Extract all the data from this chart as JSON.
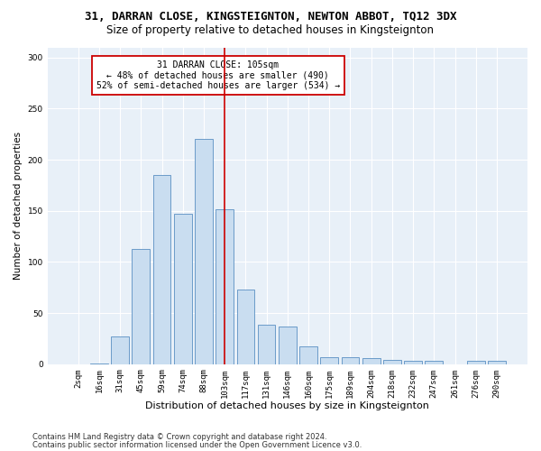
{
  "title": "31, DARRAN CLOSE, KINGSTEIGNTON, NEWTON ABBOT, TQ12 3DX",
  "subtitle": "Size of property relative to detached houses in Kingsteignton",
  "xlabel": "Distribution of detached houses by size in Kingsteignton",
  "ylabel": "Number of detached properties",
  "footnote1": "Contains HM Land Registry data © Crown copyright and database right 2024.",
  "footnote2": "Contains public sector information licensed under the Open Government Licence v3.0.",
  "bar_labels": [
    "2sqm",
    "16sqm",
    "31sqm",
    "45sqm",
    "59sqm",
    "74sqm",
    "88sqm",
    "103sqm",
    "117sqm",
    "131sqm",
    "146sqm",
    "160sqm",
    "175sqm",
    "189sqm",
    "204sqm",
    "218sqm",
    "232sqm",
    "247sqm",
    "261sqm",
    "276sqm",
    "290sqm"
  ],
  "bar_values": [
    0,
    1,
    27,
    113,
    185,
    147,
    220,
    152,
    73,
    39,
    37,
    17,
    7,
    7,
    6,
    4,
    3,
    3,
    0,
    3,
    3
  ],
  "bar_color": "#c9ddf0",
  "bar_edgecolor": "#5a8fc2",
  "vline_x": 7,
  "vline_color": "#cc0000",
  "annotation_text": "31 DARRAN CLOSE: 105sqm\n← 48% of detached houses are smaller (490)\n52% of semi-detached houses are larger (534) →",
  "annotation_box_edgecolor": "#cc0000",
  "annotation_box_facecolor": "white",
  "ylim": [
    0,
    310
  ],
  "yticks": [
    0,
    50,
    100,
    150,
    200,
    250,
    300
  ],
  "bg_color": "#e8f0f8",
  "grid_color": "white",
  "title_fontsize": 9,
  "subtitle_fontsize": 8.5,
  "xlabel_fontsize": 8,
  "ylabel_fontsize": 7.5,
  "tick_fontsize": 6.5,
  "annotation_fontsize": 7,
  "footnote_fontsize": 6
}
